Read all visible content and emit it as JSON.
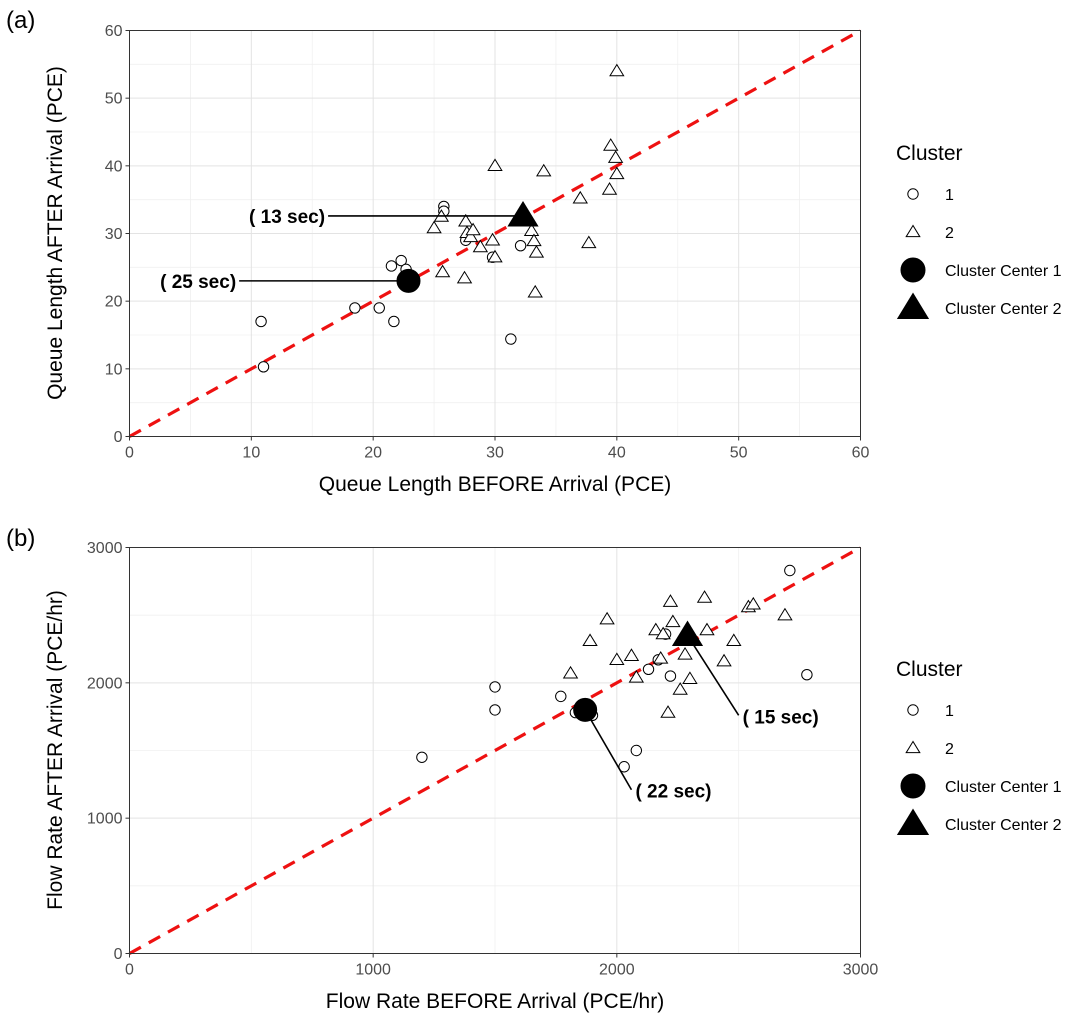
{
  "chart_data": [
    {
      "type": "scatter",
      "panel_label": "(a)",
      "xlabel": "Queue Length BEFORE Arrival (PCE)",
      "ylabel": "Queue Length AFTER Arrival (PCE)",
      "xlim": [
        0,
        60
      ],
      "ylim": [
        0,
        60
      ],
      "xticks": [
        0,
        10,
        20,
        30,
        40,
        50,
        60
      ],
      "yticks": [
        0,
        10,
        20,
        30,
        40,
        50,
        60
      ],
      "grid": true,
      "reference_line": {
        "slope": 1,
        "intercept": 0,
        "style": "dashed",
        "color": "#ee1111"
      },
      "legend": {
        "title": "Cluster",
        "placement": "right",
        "entries": [
          {
            "label": "1",
            "marker": "open-circle"
          },
          {
            "label": "2",
            "marker": "open-triangle"
          },
          {
            "label": "Cluster Center 1",
            "marker": "filled-circle"
          },
          {
            "label": "Cluster Center 2",
            "marker": "filled-triangle"
          }
        ]
      },
      "series": [
        {
          "name": "1",
          "marker": "open-circle",
          "points": [
            [
              10.8,
              17.0
            ],
            [
              11.0,
              10.3
            ],
            [
              18.5,
              19.0
            ],
            [
              20.5,
              19.0
            ],
            [
              21.5,
              25.2
            ],
            [
              21.7,
              17.0
            ],
            [
              22.3,
              26.0
            ],
            [
              22.7,
              24.7
            ],
            [
              22.8,
              23.2
            ],
            [
              25.8,
              34.0
            ],
            [
              25.8,
              33.3
            ],
            [
              27.6,
              29.0
            ],
            [
              29.8,
              26.5
            ],
            [
              31.3,
              14.4
            ],
            [
              32.1,
              28.2
            ]
          ]
        },
        {
          "name": "2",
          "marker": "open-triangle",
          "points": [
            [
              25.0,
              30.8
            ],
            [
              25.6,
              32.5
            ],
            [
              25.7,
              24.3
            ],
            [
              27.5,
              23.4
            ],
            [
              27.6,
              31.8
            ],
            [
              27.7,
              30.1
            ],
            [
              28.0,
              29.5
            ],
            [
              28.2,
              30.5
            ],
            [
              28.8,
              28.0
            ],
            [
              29.8,
              29.0
            ],
            [
              30.0,
              26.5
            ],
            [
              30.0,
              40.0
            ],
            [
              33.0,
              30.4
            ],
            [
              33.2,
              28.9
            ],
            [
              33.3,
              21.3
            ],
            [
              33.4,
              27.2
            ],
            [
              34.0,
              39.2
            ],
            [
              37.0,
              35.2
            ],
            [
              37.7,
              28.6
            ],
            [
              39.4,
              36.5
            ],
            [
              39.5,
              43.0
            ],
            [
              39.9,
              41.2
            ],
            [
              40.0,
              38.8
            ],
            [
              40.0,
              54.0
            ]
          ]
        },
        {
          "name": "Cluster Center 1",
          "marker": "filled-circle",
          "points": [
            [
              22.9,
              23.0
            ]
          ]
        },
        {
          "name": "Cluster Center 2",
          "marker": "filled-triangle",
          "points": [
            [
              32.3,
              32.6
            ]
          ]
        }
      ],
      "annotations": [
        {
          "text": "( 25 sec)",
          "target": [
            22.9,
            23.0
          ],
          "line_to": [
            9,
            23.0
          ]
        },
        {
          "text": "( 13 sec)",
          "target": [
            32.3,
            32.6
          ],
          "line_to": [
            16.3,
            32.6
          ]
        }
      ]
    },
    {
      "type": "scatter",
      "panel_label": "(b)",
      "xlabel": "Flow Rate BEFORE Arrival (PCE/hr)",
      "ylabel": "Flow Rate AFTER Arrival (PCE/hr)",
      "xlim": [
        0,
        3000
      ],
      "ylim": [
        0,
        3000
      ],
      "xticks": [
        0,
        1000,
        2000,
        3000
      ],
      "yticks": [
        0,
        1000,
        2000,
        3000
      ],
      "grid": true,
      "reference_line": {
        "slope": 1,
        "intercept": 0,
        "style": "dashed",
        "color": "#ee1111"
      },
      "legend": {
        "title": "Cluster",
        "placement": "right",
        "entries": [
          {
            "label": "1",
            "marker": "open-circle"
          },
          {
            "label": "2",
            "marker": "open-triangle"
          },
          {
            "label": "Cluster Center 1",
            "marker": "filled-circle"
          },
          {
            "label": "Cluster Center 2",
            "marker": "filled-triangle"
          }
        ]
      },
      "series": [
        {
          "name": "1",
          "marker": "open-circle",
          "points": [
            [
              1200,
              1450
            ],
            [
              1500,
              1800
            ],
            [
              1500,
              1970
            ],
            [
              1770,
              1900
            ],
            [
              1830,
              1780
            ],
            [
              1870,
              1810
            ],
            [
              1880,
              1780
            ],
            [
              1900,
              1760
            ],
            [
              2030,
              1380
            ],
            [
              2080,
              1500
            ],
            [
              2130,
              2100
            ],
            [
              2170,
              2170
            ],
            [
              2200,
              2360
            ],
            [
              2220,
              2050
            ],
            [
              2710,
              2830
            ],
            [
              2780,
              2060
            ]
          ]
        },
        {
          "name": "2",
          "marker": "open-triangle",
          "points": [
            [
              1810,
              2070
            ],
            [
              1890,
              2310
            ],
            [
              1960,
              2470
            ],
            [
              2000,
              2170
            ],
            [
              2060,
              2200
            ],
            [
              2080,
              2040
            ],
            [
              2160,
              2390
            ],
            [
              2180,
              2180
            ],
            [
              2190,
              2360
            ],
            [
              2210,
              1780
            ],
            [
              2220,
              2600
            ],
            [
              2230,
              2450
            ],
            [
              2260,
              1950
            ],
            [
              2280,
              2210
            ],
            [
              2300,
              2030
            ],
            [
              2360,
              2630
            ],
            [
              2370,
              2390
            ],
            [
              2440,
              2160
            ],
            [
              2480,
              2310
            ],
            [
              2540,
              2560
            ],
            [
              2560,
              2580
            ],
            [
              2690,
              2500
            ]
          ]
        },
        {
          "name": "Cluster Center 1",
          "marker": "filled-circle",
          "points": [
            [
              1870,
              1800
            ]
          ]
        },
        {
          "name": "Cluster Center 2",
          "marker": "filled-triangle",
          "points": [
            [
              2290,
              2350
            ]
          ]
        }
      ],
      "annotations": [
        {
          "text": "( 22 sec)",
          "target": [
            1870,
            1800
          ],
          "line_to": [
            2060,
            1210
          ]
        },
        {
          "text": "( 15 sec)",
          "target": [
            2290,
            2350
          ],
          "line_to": [
            2500,
            1760
          ]
        }
      ]
    }
  ]
}
